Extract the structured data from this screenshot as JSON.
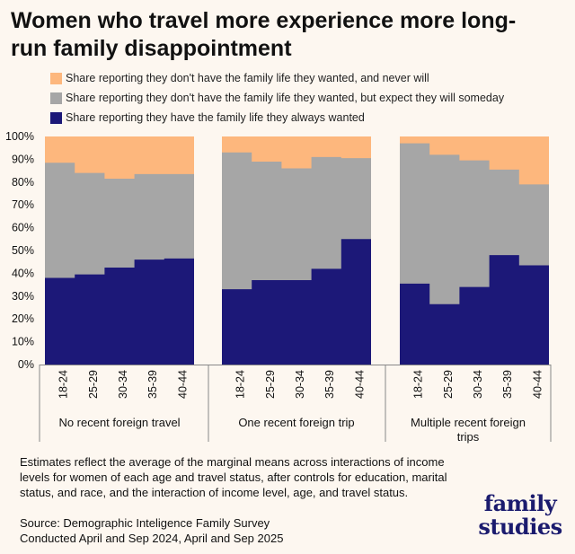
{
  "title": "Women who travel more experience more long-run family disappointment",
  "legend": [
    {
      "label": "Share reporting they don't have the family life they wanted, and never will",
      "color": "#fdb77d"
    },
    {
      "label": "Share reporting they don't have the family life they wanted, but expect they will someday",
      "color": "#a6a6a6"
    },
    {
      "label": "Share reporting they have the family life they always wanted",
      "color": "#1c1878"
    }
  ],
  "chart_data": {
    "type": "area",
    "stacked": true,
    "ylim": [
      0,
      100
    ],
    "y_ticks": [
      "0%",
      "10%",
      "20%",
      "30%",
      "40%",
      "50%",
      "60%",
      "70%",
      "80%",
      "90%",
      "100%"
    ],
    "categories": [
      "18-24",
      "25-29",
      "30-34",
      "35-39",
      "40-44"
    ],
    "panels": [
      {
        "label": "No recent foreign travel",
        "series": [
          {
            "name": "have",
            "values": [
              38,
              39.5,
              42.5,
              46,
              46.5
            ]
          },
          {
            "name": "expect_someday",
            "values": [
              50.5,
              44.5,
              39,
              37.5,
              37
            ]
          },
          {
            "name": "never",
            "values": [
              11.5,
              16,
              18.5,
              16.5,
              16.5
            ]
          }
        ]
      },
      {
        "label": "One recent foreign trip",
        "series": [
          {
            "name": "have",
            "values": [
              33,
              37,
              37,
              42,
              55
            ]
          },
          {
            "name": "expect_someday",
            "values": [
              60,
              52,
              49,
              49,
              35.5
            ]
          },
          {
            "name": "never",
            "values": [
              7,
              11,
              14,
              9,
              9.5
            ]
          }
        ]
      },
      {
        "label": "Multiple recent foreign trips",
        "series": [
          {
            "name": "have",
            "values": [
              35.5,
              26.5,
              34,
              48,
              43.5
            ]
          },
          {
            "name": "expect_someday",
            "values": [
              61.5,
              65.5,
              55.5,
              37.5,
              35.5
            ]
          },
          {
            "name": "never",
            "values": [
              3,
              8,
              10.5,
              14.5,
              21
            ]
          }
        ]
      }
    ]
  },
  "note": "Estimates reflect the average of the marginal means across interactions of income levels for women of each age and travel status,  after controls for education, marital status, and race, and the interaction of income level, age, and travel status.",
  "source_line1": "Source: Demographic Inteligence Family Survey",
  "source_line2": "Conducted April and Sep 2024, April and Sep 2025",
  "logo_line1": "family",
  "logo_line2": "studies"
}
